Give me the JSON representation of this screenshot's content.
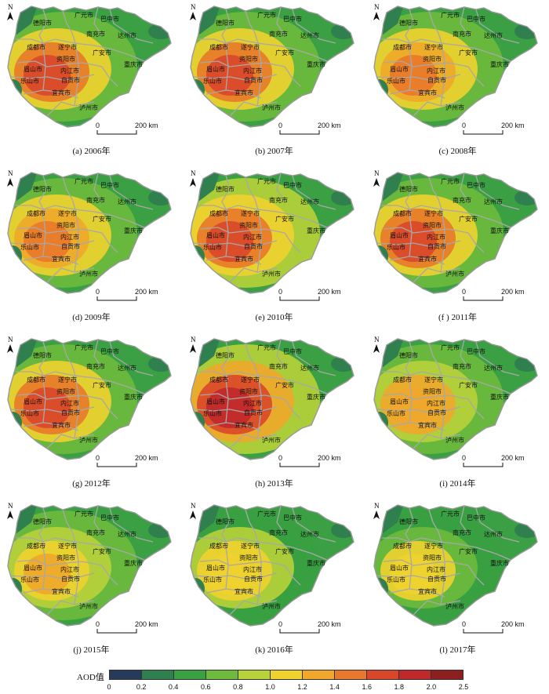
{
  "cities": [
    "广元市",
    "巴中市",
    "德阳市",
    "南充市",
    "达州市",
    "成都市",
    "遂宁市",
    "广安市",
    "资阳市",
    "眉山市",
    "内江市",
    "重庆市",
    "乐山市",
    "自贡市",
    "宜宾市",
    "泸州市"
  ],
  "north_label": "N",
  "scale": {
    "start": "0",
    "end": "200 km"
  },
  "panels": [
    {
      "caption": "(a)  2006年",
      "level": 0.55
    },
    {
      "caption": "(b)  2007年",
      "level": 0.55
    },
    {
      "caption": "(c)  2008年",
      "level": 0.45
    },
    {
      "caption": "(d)  2009年",
      "level": 0.45
    },
    {
      "caption": "(e)  2010年",
      "level": 0.6
    },
    {
      "caption": "(f )  2011年",
      "level": 0.55
    },
    {
      "caption": "(g)  2012年",
      "level": 0.5
    },
    {
      "caption": "(h)  2013年",
      "level": 0.8
    },
    {
      "caption": "(i)  2014年",
      "level": 0.3
    },
    {
      "caption": "(j)  2015年",
      "level": 0.2
    },
    {
      "caption": "(k)  2016年",
      "level": 0.15
    },
    {
      "caption": "(l)  2017年",
      "level": 0.1
    }
  ],
  "legend": {
    "title": "AOD值",
    "ticks": [
      "0",
      "0.2",
      "0.4",
      "0.6",
      "0.8",
      "1.0",
      "1.2",
      "1.4",
      "1.6",
      "1.8",
      "2.0",
      "2.5"
    ],
    "colors": [
      "#263a5b",
      "#2f7f4f",
      "#3aa043",
      "#6dba3c",
      "#b8d23a",
      "#f0d22f",
      "#f0a72b",
      "#e8782a",
      "#d9472a",
      "#c0282a",
      "#8e1f1f"
    ]
  }
}
